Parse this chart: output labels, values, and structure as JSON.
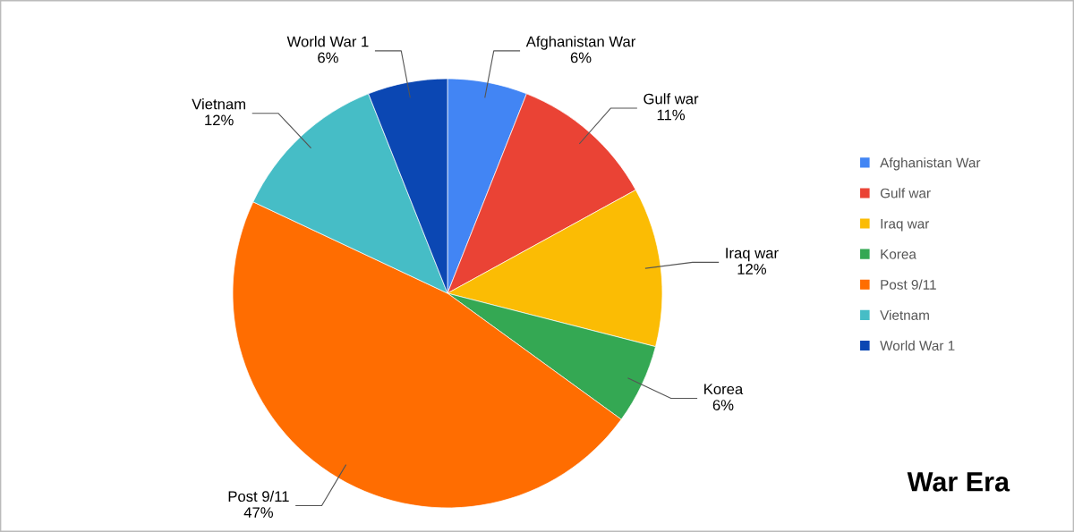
{
  "chart_data": {
    "type": "pie",
    "title": "War Era",
    "categories": [
      "Afghanistan War",
      "Gulf war",
      "Iraq war",
      "Korea",
      "Post 9/11",
      "Vietnam",
      "World War 1"
    ],
    "values": [
      6,
      11,
      12,
      6,
      47,
      12,
      6
    ],
    "value_labels": [
      "6%",
      "11%",
      "12%",
      "6%",
      "47%",
      "12%",
      "6%"
    ],
    "colors": [
      "#4285f4",
      "#ea4335",
      "#fbbc04",
      "#34a853",
      "#ff6d01",
      "#46bdc6",
      "#0b47b3"
    ],
    "legend": "right"
  }
}
